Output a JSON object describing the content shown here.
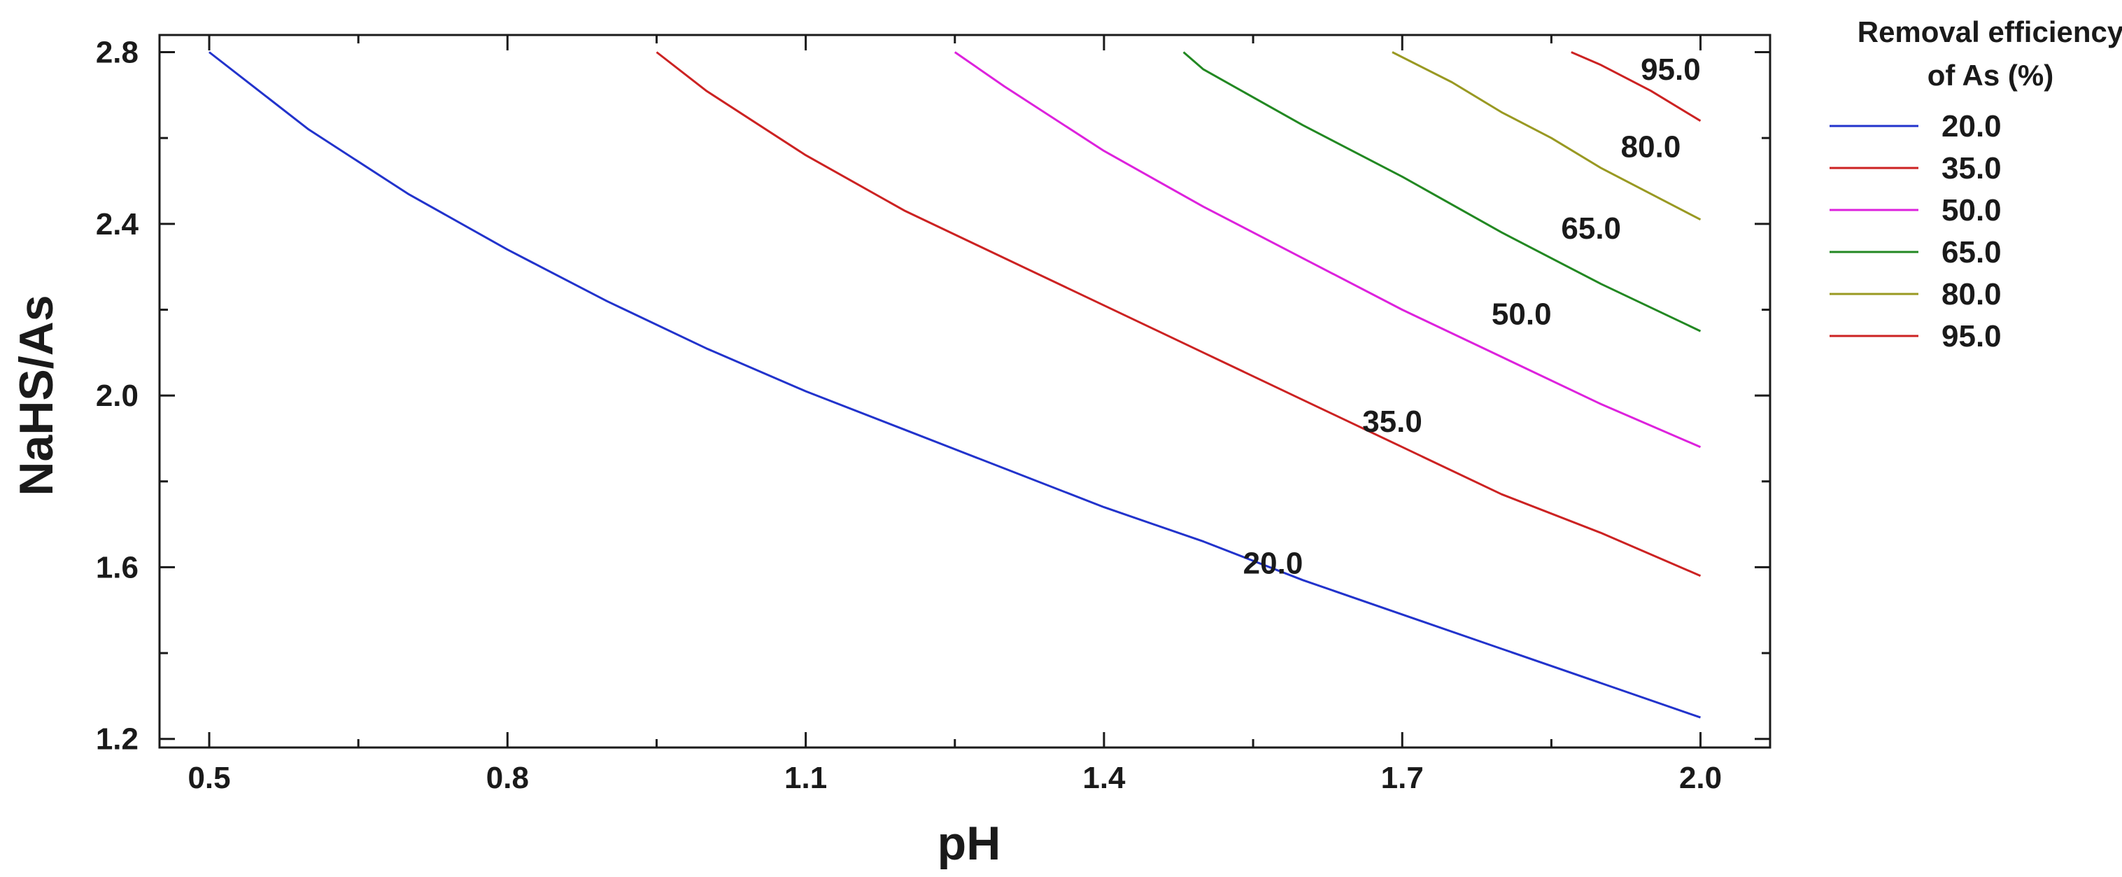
{
  "chart_data": {
    "type": "line",
    "subtype": "contour",
    "xlabel": "pH",
    "ylabel": "NaHS/As",
    "xlim": [
      0.45,
      2.07
    ],
    "ylim": [
      1.18,
      2.84
    ],
    "xticks": [
      "0.5",
      "0.8",
      "1.1",
      "1.4",
      "1.7",
      "2.0"
    ],
    "yticks": [
      "1.2",
      "1.6",
      "2.0",
      "2.4",
      "2.8"
    ],
    "legend": {
      "title_line1": "Removal efficiency",
      "title_line2": "of As (%)",
      "placement": "right"
    },
    "series": [
      {
        "name": "20.0",
        "color": "#2233cc",
        "label_at": [
          1.57,
          1.61
        ],
        "x": [
          0.5,
          0.6,
          0.7,
          0.8,
          0.9,
          1.0,
          1.1,
          1.2,
          1.3,
          1.4,
          1.5,
          1.6,
          1.7,
          1.8,
          1.9,
          2.0
        ],
        "y": [
          2.8,
          2.62,
          2.47,
          2.34,
          2.22,
          2.11,
          2.01,
          1.92,
          1.83,
          1.74,
          1.66,
          1.57,
          1.49,
          1.41,
          1.33,
          1.25
        ]
      },
      {
        "name": "35.0",
        "color": "#cc2222",
        "label_at": [
          1.69,
          1.94
        ],
        "x": [
          0.95,
          1.0,
          1.1,
          1.2,
          1.3,
          1.4,
          1.5,
          1.6,
          1.7,
          1.8,
          1.9,
          2.0
        ],
        "y": [
          2.8,
          2.71,
          2.56,
          2.43,
          2.32,
          2.21,
          2.1,
          1.99,
          1.88,
          1.77,
          1.68,
          1.58
        ]
      },
      {
        "name": "50.0",
        "color": "#dd22dd",
        "label_at": [
          1.82,
          2.19
        ],
        "x": [
          1.25,
          1.3,
          1.4,
          1.5,
          1.6,
          1.7,
          1.8,
          1.9,
          2.0
        ],
        "y": [
          2.8,
          2.72,
          2.57,
          2.44,
          2.32,
          2.2,
          2.09,
          1.98,
          1.88
        ]
      },
      {
        "name": "65.0",
        "color": "#228822",
        "label_at": [
          1.89,
          2.39
        ],
        "x": [
          1.48,
          1.5,
          1.6,
          1.7,
          1.8,
          1.9,
          2.0
        ],
        "y": [
          2.8,
          2.76,
          2.63,
          2.51,
          2.38,
          2.26,
          2.15
        ]
      },
      {
        "name": "80.0",
        "color": "#999922",
        "label_at": [
          1.95,
          2.58
        ],
        "x": [
          1.69,
          1.75,
          1.8,
          1.85,
          1.9,
          1.95,
          2.0
        ],
        "y": [
          2.8,
          2.73,
          2.66,
          2.6,
          2.53,
          2.47,
          2.41
        ]
      },
      {
        "name": "95.0",
        "color": "#cc2222",
        "label_at": [
          1.97,
          2.76
        ],
        "x": [
          1.87,
          1.9,
          1.95,
          2.0
        ],
        "y": [
          2.8,
          2.77,
          2.71,
          2.64
        ]
      }
    ]
  }
}
